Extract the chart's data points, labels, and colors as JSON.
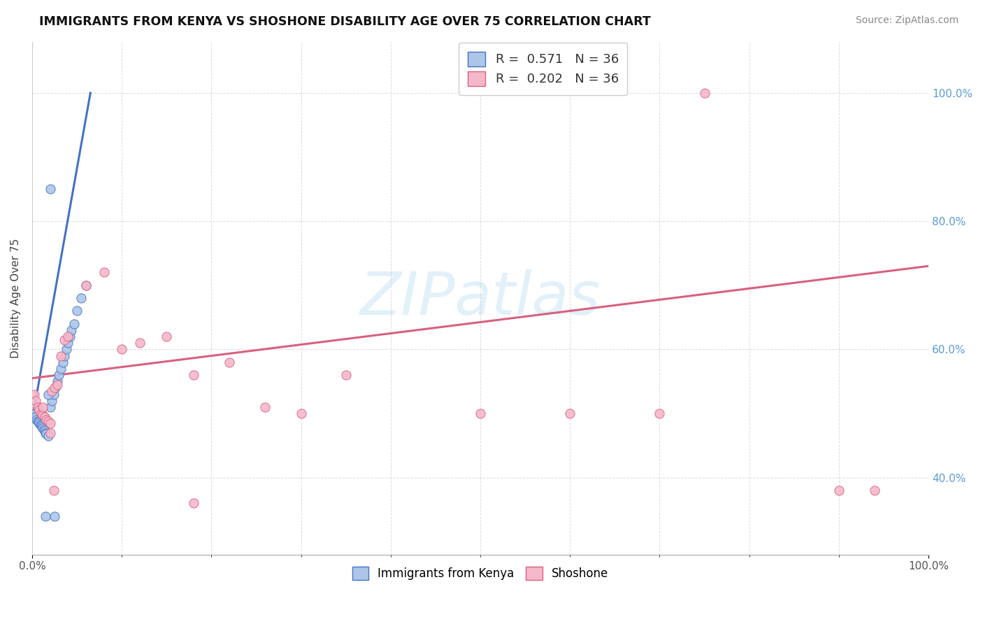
{
  "title": "IMMIGRANTS FROM KENYA VS SHOSHONE DISABILITY AGE OVER 75 CORRELATION CHART",
  "source": "Source: ZipAtlas.com",
  "ylabel": "Disability Age Over 75",
  "xlim": [
    0.0,
    1.0
  ],
  "ylim": [
    0.28,
    1.08
  ],
  "x_tick_labels": [
    "0.0%",
    "100.0%"
  ],
  "y_ticks": [
    0.4,
    0.6,
    0.8,
    1.0
  ],
  "y_tick_labels": [
    "40.0%",
    "60.0%",
    "80.0%",
    "100.0%"
  ],
  "watermark": "ZIPatlas",
  "series1_color": "#adc6e8",
  "series2_color": "#f5b8cb",
  "line1_color": "#4472c4",
  "line2_color": "#d9607e",
  "kenya_x": [
    0.003,
    0.004,
    0.005,
    0.006,
    0.007,
    0.008,
    0.009,
    0.01,
    0.011,
    0.012,
    0.013,
    0.014,
    0.015,
    0.016,
    0.018,
    0.02,
    0.022,
    0.024,
    0.026,
    0.028,
    0.03,
    0.032,
    0.034,
    0.036,
    0.038,
    0.04,
    0.042,
    0.044,
    0.047,
    0.05,
    0.055,
    0.06,
    0.02,
    0.018,
    0.025,
    0.015
  ],
  "kenya_y": [
    0.5,
    0.495,
    0.49,
    0.488,
    0.487,
    0.485,
    0.483,
    0.481,
    0.479,
    0.477,
    0.475,
    0.473,
    0.47,
    0.468,
    0.465,
    0.51,
    0.52,
    0.53,
    0.54,
    0.55,
    0.56,
    0.57,
    0.58,
    0.59,
    0.6,
    0.61,
    0.62,
    0.63,
    0.64,
    0.66,
    0.68,
    0.7,
    0.85,
    0.53,
    0.34,
    0.34
  ],
  "shoshone_x": [
    0.002,
    0.004,
    0.006,
    0.008,
    0.01,
    0.012,
    0.014,
    0.016,
    0.018,
    0.02,
    0.022,
    0.025,
    0.028,
    0.032,
    0.036,
    0.04,
    0.06,
    0.08,
    0.1,
    0.12,
    0.15,
    0.18,
    0.22,
    0.26,
    0.3,
    0.35,
    0.5,
    0.6,
    0.7,
    0.75,
    0.9,
    0.94,
    0.02,
    0.024,
    0.18,
    0.012
  ],
  "shoshone_y": [
    0.53,
    0.52,
    0.51,
    0.505,
    0.5,
    0.498,
    0.495,
    0.49,
    0.488,
    0.485,
    0.535,
    0.54,
    0.545,
    0.59,
    0.615,
    0.62,
    0.7,
    0.72,
    0.6,
    0.61,
    0.62,
    0.56,
    0.58,
    0.51,
    0.5,
    0.56,
    0.5,
    0.5,
    0.5,
    1.0,
    0.38,
    0.38,
    0.47,
    0.38,
    0.36,
    0.51
  ],
  "line1_x_start": 0.0,
  "line1_x_end": 0.065,
  "line1_y_start": 0.49,
  "line1_y_end": 1.0,
  "line2_x_start": 0.0,
  "line2_x_end": 1.0,
  "line2_y_start": 0.555,
  "line2_y_end": 0.73
}
